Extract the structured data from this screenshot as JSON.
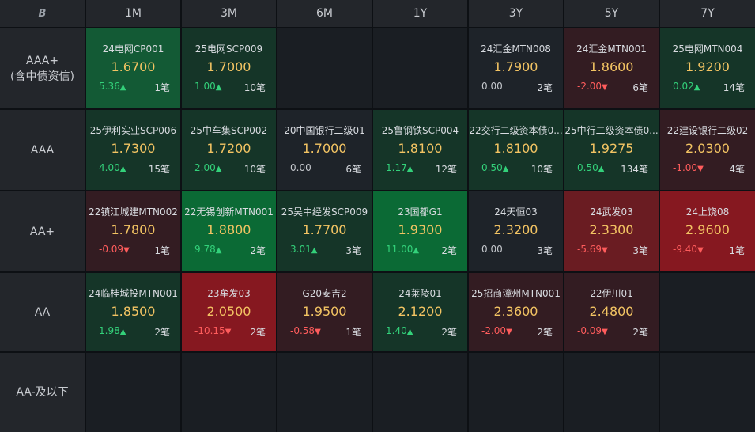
{
  "corner_icon": "B",
  "colors": {
    "neutral": "#1e2329",
    "green_light": "#153528",
    "green_mid": "#135a35",
    "green_strong": "#0b6a35",
    "red_light": "#331c22",
    "red_mid": "#6a1c22",
    "red_strong": "#861820",
    "empty": "#1a1e23"
  },
  "columns": [
    "1M",
    "3M",
    "6M",
    "1Y",
    "3Y",
    "5Y",
    "7Y"
  ],
  "rows": [
    {
      "label": [
        "AAA+",
        "(含中债资信)"
      ],
      "cells": [
        {
          "name": "24电网CP001",
          "yield": "1.6700",
          "change": "5.36",
          "dir": "up",
          "count": "1笔",
          "bg": "green_mid"
        },
        {
          "name": "25电网SCP009",
          "yield": "1.7000",
          "change": "1.00",
          "dir": "up",
          "count": "10笔",
          "bg": "green_light"
        },
        null,
        null,
        {
          "name": "24汇金MTN008",
          "yield": "1.7900",
          "change": "0.00",
          "dir": "flat",
          "count": "2笔",
          "bg": "neutral"
        },
        {
          "name": "24汇金MTN001",
          "yield": "1.8600",
          "change": "-2.00",
          "dir": "down",
          "count": "6笔",
          "bg": "red_light"
        },
        {
          "name": "25电网MTN004",
          "yield": "1.9200",
          "change": "0.02",
          "dir": "up",
          "count": "14笔",
          "bg": "green_light"
        }
      ]
    },
    {
      "label": [
        "AAA"
      ],
      "cells": [
        {
          "name": "25伊利实业SCP006",
          "yield": "1.7300",
          "change": "4.00",
          "dir": "up",
          "count": "15笔",
          "bg": "green_light"
        },
        {
          "name": "25中车集SCP002",
          "yield": "1.7200",
          "change": "2.00",
          "dir": "up",
          "count": "10笔",
          "bg": "green_light"
        },
        {
          "name": "20中国银行二级01",
          "yield": "1.7000",
          "change": "0.00",
          "dir": "flat",
          "count": "6笔",
          "bg": "neutral"
        },
        {
          "name": "25鲁钢铁SCP004",
          "yield": "1.8100",
          "change": "1.17",
          "dir": "up",
          "count": "12笔",
          "bg": "green_light"
        },
        {
          "name": "22交行二级资本债0...",
          "yield": "1.8100",
          "change": "0.50",
          "dir": "up",
          "count": "10笔",
          "bg": "green_light"
        },
        {
          "name": "25中行二级资本债0...",
          "yield": "1.9275",
          "change": "0.50",
          "dir": "up",
          "count": "134笔",
          "bg": "green_light"
        },
        {
          "name": "22建设银行二级02",
          "yield": "2.0300",
          "change": "-1.00",
          "dir": "down",
          "count": "4笔",
          "bg": "red_light"
        }
      ]
    },
    {
      "label": [
        "AA+"
      ],
      "cells": [
        {
          "name": "22镇江城建MTN002",
          "yield": "1.7800",
          "change": "-0.09",
          "dir": "down",
          "count": "1笔",
          "bg": "red_light"
        },
        {
          "name": "22无锡创新MTN001",
          "yield": "1.8800",
          "change": "9.78",
          "dir": "up",
          "count": "2笔",
          "bg": "green_strong"
        },
        {
          "name": "25吴中经发SCP009",
          "yield": "1.7700",
          "change": "3.01",
          "dir": "up",
          "count": "3笔",
          "bg": "green_light"
        },
        {
          "name": "23国都G1",
          "yield": "1.9300",
          "change": "11.00",
          "dir": "up",
          "count": "2笔",
          "bg": "green_strong"
        },
        {
          "name": "24天恒03",
          "yield": "2.3200",
          "change": "0.00",
          "dir": "flat",
          "count": "3笔",
          "bg": "neutral"
        },
        {
          "name": "24武发03",
          "yield": "2.3300",
          "change": "-5.69",
          "dir": "down",
          "count": "3笔",
          "bg": "red_mid"
        },
        {
          "name": "24上饶08",
          "yield": "2.9600",
          "change": "-9.40",
          "dir": "down",
          "count": "1笔",
          "bg": "red_strong"
        }
      ]
    },
    {
      "label": [
        "AA"
      ],
      "cells": [
        {
          "name": "24临桂城投MTN001",
          "yield": "1.8500",
          "change": "1.98",
          "dir": "up",
          "count": "2笔",
          "bg": "green_light"
        },
        {
          "name": "23牟发03",
          "yield": "2.0500",
          "change": "-10.15",
          "dir": "down",
          "count": "2笔",
          "bg": "red_strong"
        },
        {
          "name": "G20安吉2",
          "yield": "1.9500",
          "change": "-0.58",
          "dir": "down",
          "count": "1笔",
          "bg": "red_light"
        },
        {
          "name": "24莱陵01",
          "yield": "2.1200",
          "change": "1.40",
          "dir": "up",
          "count": "2笔",
          "bg": "green_light"
        },
        {
          "name": "25招商漳州MTN001",
          "yield": "2.3600",
          "change": "-2.00",
          "dir": "down",
          "count": "2笔",
          "bg": "red_light"
        },
        {
          "name": "22伊川01",
          "yield": "2.4800",
          "change": "-0.09",
          "dir": "down",
          "count": "2笔",
          "bg": "red_light"
        },
        null
      ]
    },
    {
      "label": [
        "AA-及以下"
      ],
      "cells": [
        null,
        null,
        null,
        null,
        null,
        null,
        null
      ]
    }
  ]
}
